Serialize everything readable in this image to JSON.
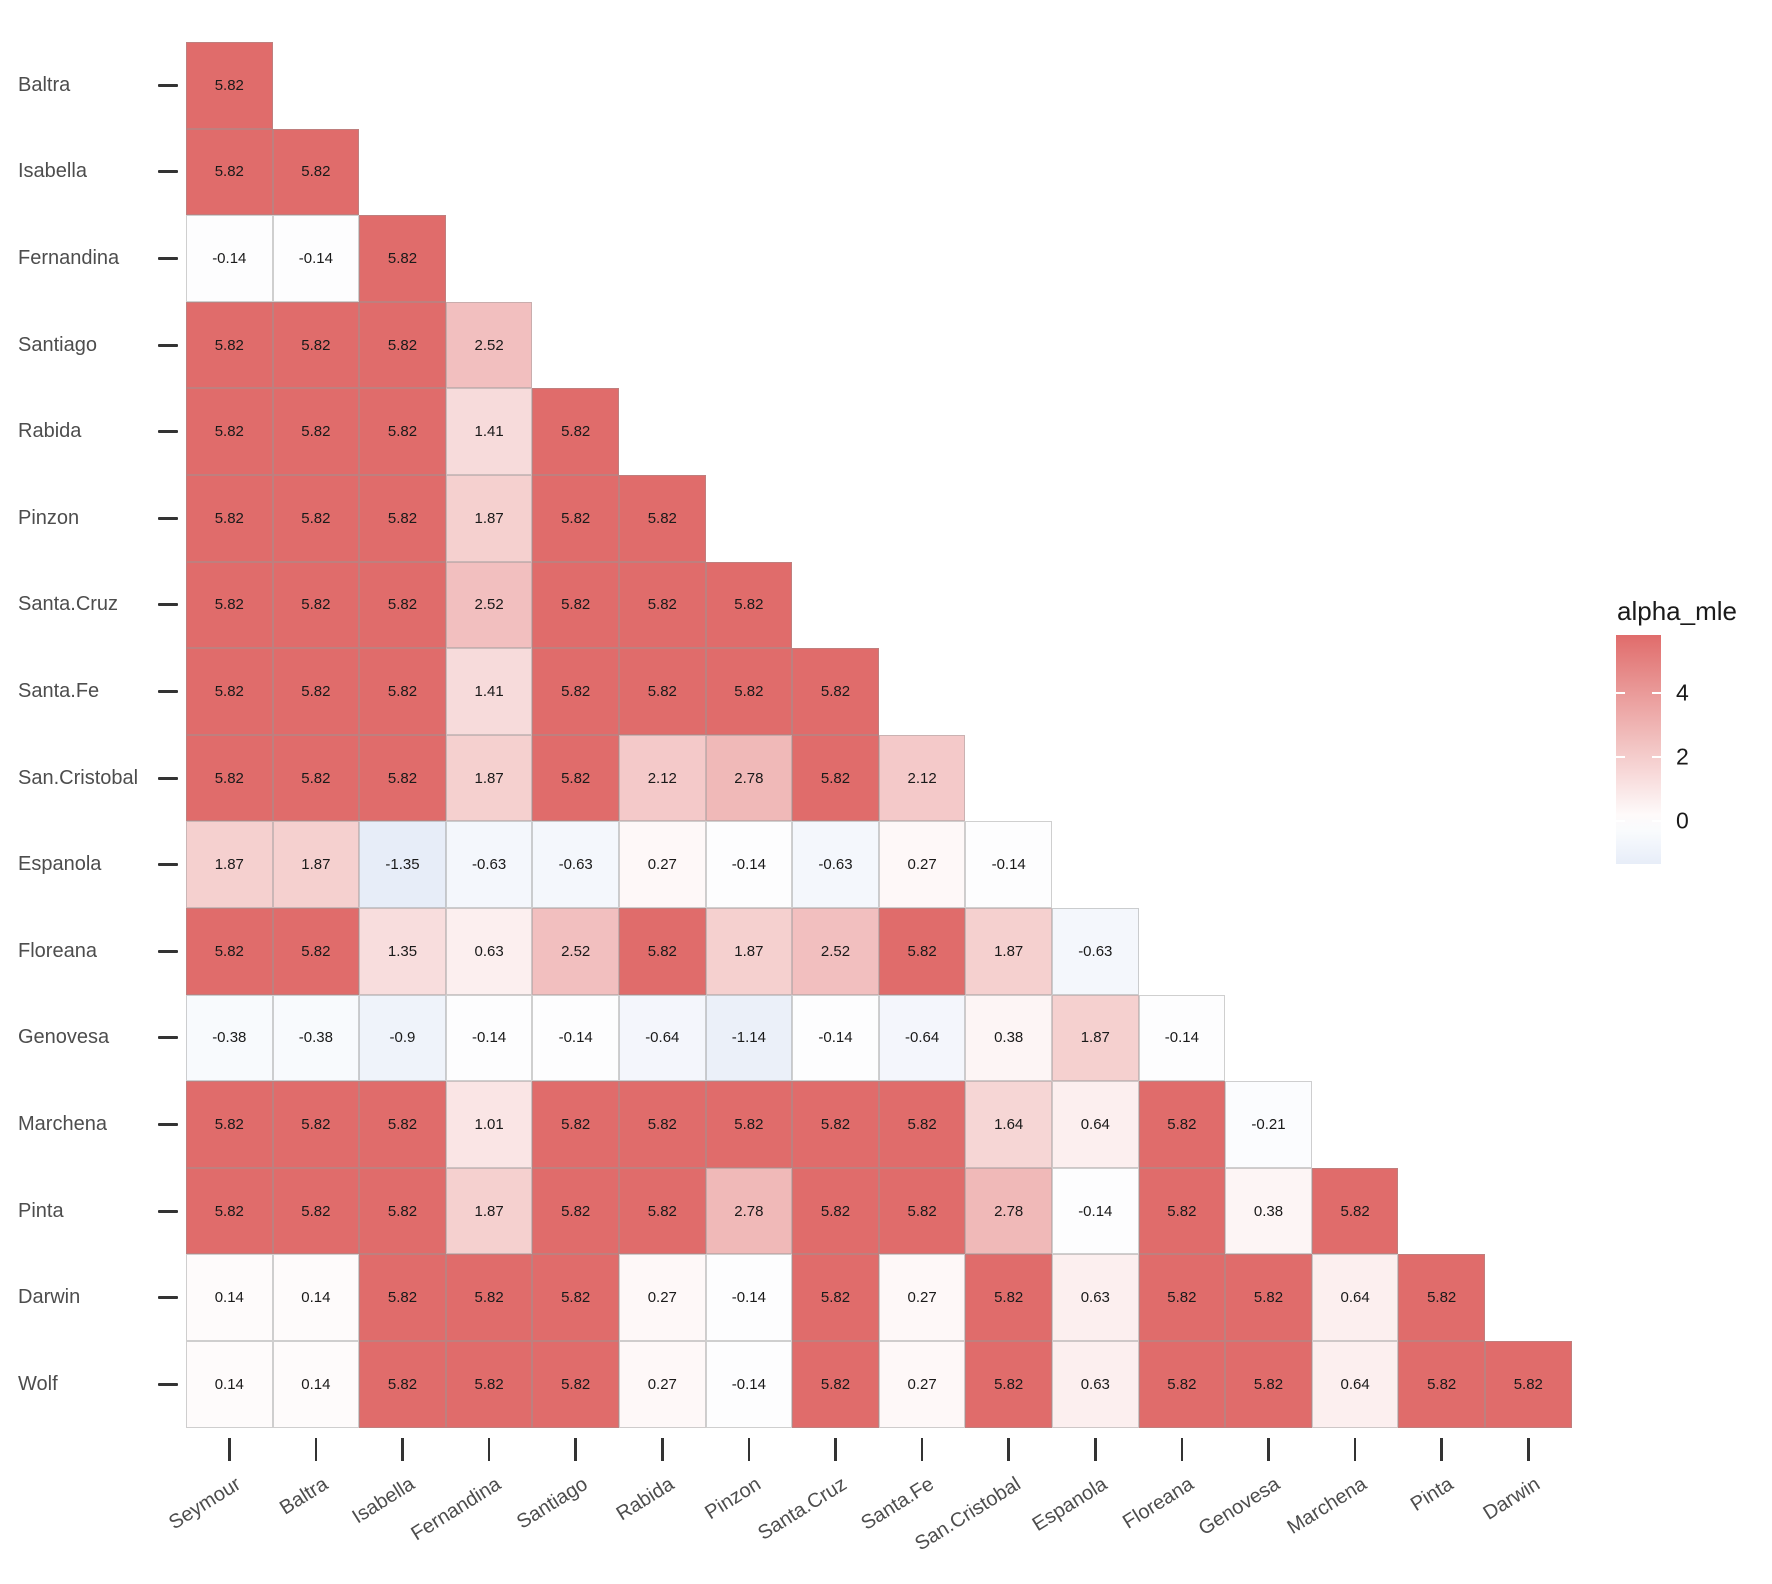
{
  "legend": {
    "title": "alpha_mle",
    "ticks": [
      4,
      2,
      0
    ]
  },
  "chart_data": {
    "type": "heatmap",
    "legend_title": "alpha_mle",
    "legend_position": "right",
    "grid": false,
    "x_labels": [
      "Seymour",
      "Baltra",
      "Isabella",
      "Fernandina",
      "Santiago",
      "Rabida",
      "Pinzon",
      "Santa.Cruz",
      "Santa.Fe",
      "San.Cristobal",
      "Espanola",
      "Floreana",
      "Genovesa",
      "Marchena",
      "Pinta",
      "Darwin"
    ],
    "y_labels": [
      "Baltra",
      "Isabella",
      "Fernandina",
      "Santiago",
      "Rabida",
      "Pinzon",
      "Santa.Cruz",
      "Santa.Fe",
      "San.Cristobal",
      "Espanola",
      "Floreana",
      "Genovesa",
      "Marchena",
      "Pinta",
      "Darwin",
      "Wolf"
    ],
    "values": [
      [
        5.82
      ],
      [
        5.82,
        5.82
      ],
      [
        -0.14,
        -0.14,
        5.82
      ],
      [
        5.82,
        5.82,
        5.82,
        2.52
      ],
      [
        5.82,
        5.82,
        5.82,
        1.41,
        5.82
      ],
      [
        5.82,
        5.82,
        5.82,
        1.87,
        5.82,
        5.82
      ],
      [
        5.82,
        5.82,
        5.82,
        2.52,
        5.82,
        5.82,
        5.82
      ],
      [
        5.82,
        5.82,
        5.82,
        1.41,
        5.82,
        5.82,
        5.82,
        5.82
      ],
      [
        5.82,
        5.82,
        5.82,
        1.87,
        5.82,
        2.12,
        2.78,
        5.82,
        2.12
      ],
      [
        1.87,
        1.87,
        -1.35,
        -0.63,
        -0.63,
        0.27,
        -0.14,
        -0.63,
        0.27,
        -0.14
      ],
      [
        5.82,
        5.82,
        1.35,
        0.63,
        2.52,
        5.82,
        1.87,
        2.52,
        5.82,
        1.87,
        -0.63
      ],
      [
        -0.38,
        -0.38,
        -0.9,
        -0.14,
        -0.14,
        -0.64,
        -1.14,
        -0.14,
        -0.64,
        0.38,
        1.87,
        -0.14
      ],
      [
        5.82,
        5.82,
        5.82,
        1.01,
        5.82,
        5.82,
        5.82,
        5.82,
        5.82,
        1.64,
        0.64,
        5.82,
        -0.21
      ],
      [
        5.82,
        5.82,
        5.82,
        1.87,
        5.82,
        5.82,
        2.78,
        5.82,
        5.82,
        2.78,
        -0.14,
        5.82,
        0.38,
        5.82
      ],
      [
        0.14,
        0.14,
        5.82,
        5.82,
        5.82,
        0.27,
        -0.14,
        5.82,
        0.27,
        5.82,
        0.63,
        5.82,
        5.82,
        0.64,
        5.82
      ],
      [
        0.14,
        0.14,
        5.82,
        5.82,
        5.82,
        0.27,
        -0.14,
        5.82,
        0.27,
        5.82,
        0.63,
        5.82,
        5.82,
        0.64,
        5.82,
        5.82
      ]
    ],
    "value_domain": [
      -1.35,
      5.82
    ],
    "legend_ticks": [
      4,
      2,
      0
    ],
    "colors": {
      "low": "#E7EDF8",
      "mid": "#FFFFFF",
      "high": "#E06C6B",
      "axis_text": "#4D4D4D",
      "cell_text": "#1A1A1A",
      "tick_mark": "#333333"
    }
  }
}
